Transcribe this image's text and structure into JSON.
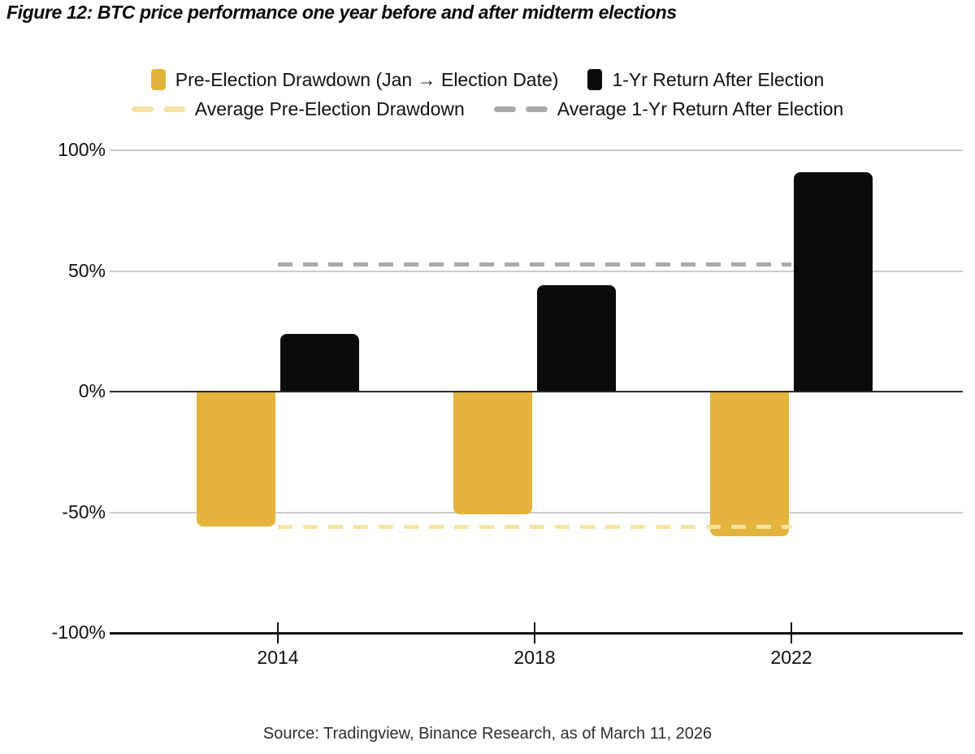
{
  "title": "Figure 12: BTC price performance one year before and after midterm elections",
  "source": "Source: Tradingview, Binance Research, as of March 11, 2026",
  "colors": {
    "gold": "#E4B43C",
    "pale_gold": "#F5E3A1",
    "black_bar": "#0B0B0B",
    "gray_dash": "#A9A9A9",
    "gridline": "#CCCCCC",
    "zero_line": "#2B2B2B",
    "axis": "#111111"
  },
  "legend": {
    "rows": [
      [
        {
          "label": "Pre-Election Drawdown (Jan → Election Date)",
          "swatch": "square",
          "color_key": "gold",
          "icon": "gold-square-swatch-icon"
        },
        {
          "label": "1-Yr Return After Election",
          "swatch": "square",
          "color_key": "black_bar",
          "icon": "black-square-swatch-icon"
        }
      ],
      [
        {
          "label": "Average Pre-Election Drawdown",
          "swatch": "dashes",
          "color_key": "pale_gold",
          "icon": "pale-gold-dash-swatch-icon"
        },
        {
          "label": "Average 1-Yr Return After Election",
          "swatch": "dashes",
          "color_key": "gray_dash",
          "icon": "gray-dash-swatch-icon"
        }
      ]
    ]
  },
  "chart_data": {
    "type": "bar",
    "title": "BTC price performance one year before and after midterm elections",
    "categories": [
      "2014",
      "2018",
      "2022"
    ],
    "series": [
      {
        "name": "Pre-Election Drawdown (Jan → Election Date)",
        "color_key": "gold",
        "values": [
          -56,
          -51,
          -60
        ]
      },
      {
        "name": "1-Yr Return After Election",
        "color_key": "black_bar",
        "values": [
          24,
          44,
          91
        ]
      }
    ],
    "average_lines": [
      {
        "name": "Average Pre-Election Drawdown",
        "value": -56,
        "color_key": "pale_gold",
        "style": "dashed"
      },
      {
        "name": "Average 1-Yr Return After Election",
        "value": 53,
        "color_key": "gray_dash",
        "style": "dashed"
      }
    ],
    "yticks": [
      100,
      50,
      0,
      -50,
      -100
    ],
    "ytick_labels": [
      "100%",
      "50%",
      "0%",
      "-50%",
      "-100%"
    ],
    "xlabel": "",
    "ylabel": "",
    "ylim": [
      -100,
      100
    ],
    "grid": true,
    "legend_position": "top"
  }
}
